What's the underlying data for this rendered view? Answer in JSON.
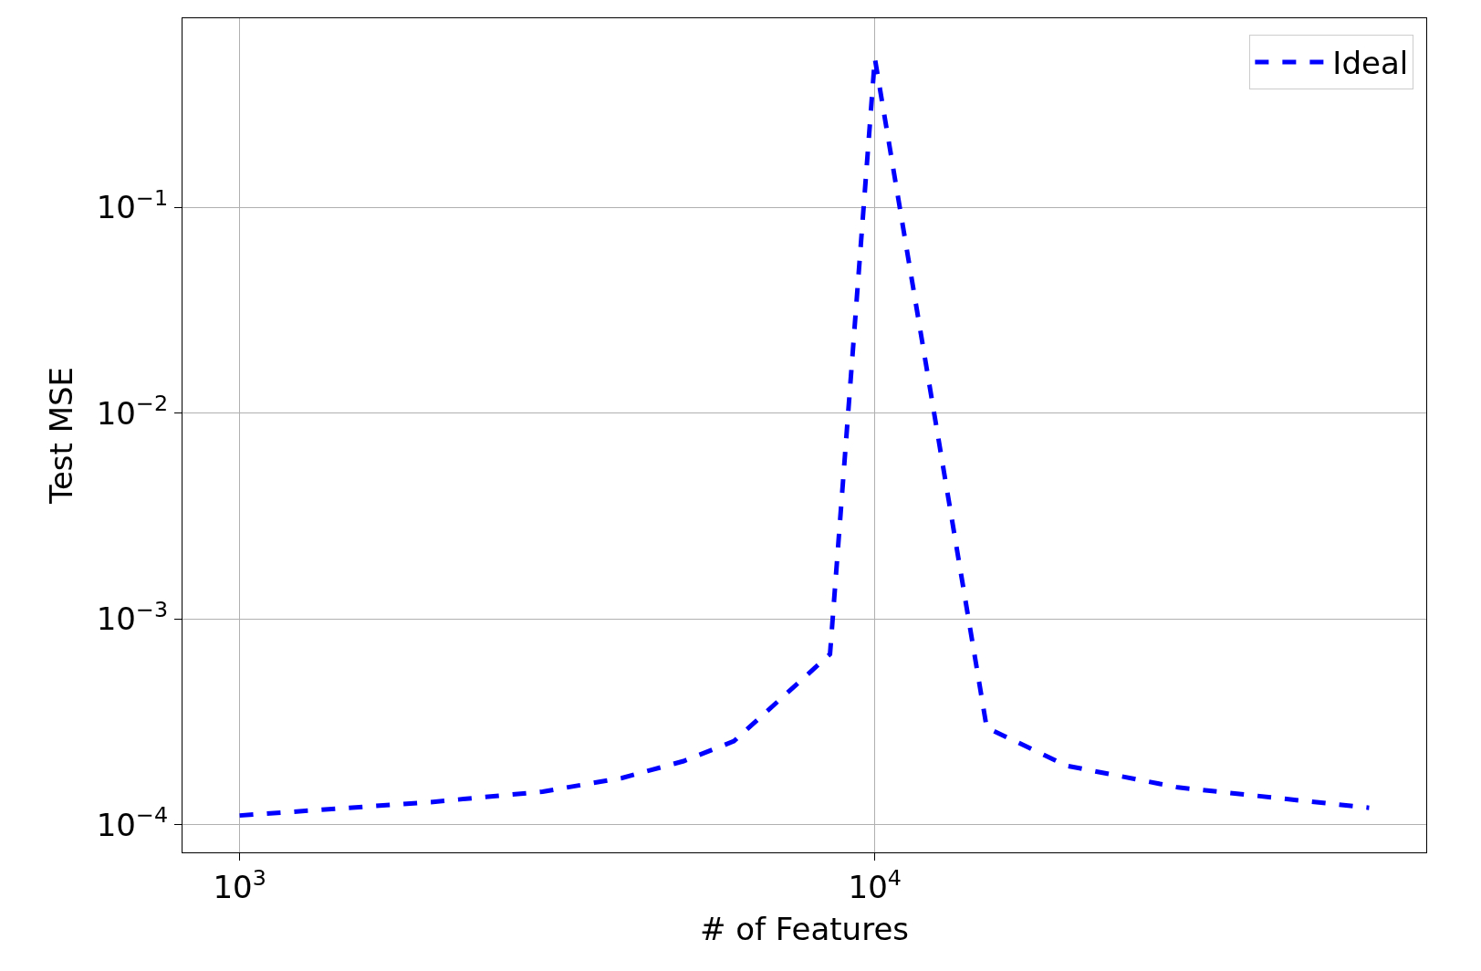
{
  "chart_data": {
    "type": "line",
    "xlabel": "# of Features",
    "ylabel": "Test MSE",
    "log": "xy",
    "x": [
      1000,
      2000,
      3000,
      4000,
      5000,
      6000,
      8500,
      10000,
      15000,
      20000,
      30000,
      60000
    ],
    "series": [
      {
        "name": "Ideal",
        "color": "#0000ff",
        "values": [
          0.000111,
          0.000129,
          0.000145,
          0.000169,
          0.000204,
          0.000255,
          0.000675,
          0.53,
          0.000297,
          0.000194,
          0.000152,
          0.000121
        ]
      }
    ],
    "xlim": [
      813,
      73800
    ],
    "ylim": [
      7.35e-05,
      0.83
    ],
    "xticks": [
      {
        "value": 1000,
        "label": "10$^{3}$"
      },
      {
        "value": 10000,
        "label": "10$^{4}$"
      }
    ],
    "yticks": [
      {
        "value": 0.0001,
        "label": "10$^{−4}$"
      },
      {
        "value": 0.001,
        "label": "10$^{−3}$"
      },
      {
        "value": 0.01,
        "label": "10$^{−2}$"
      },
      {
        "value": 0.1,
        "label": "10$^{−1}$"
      }
    ],
    "grid": true,
    "legend": "top right",
    "line_style": "dashed",
    "marker": "none"
  }
}
